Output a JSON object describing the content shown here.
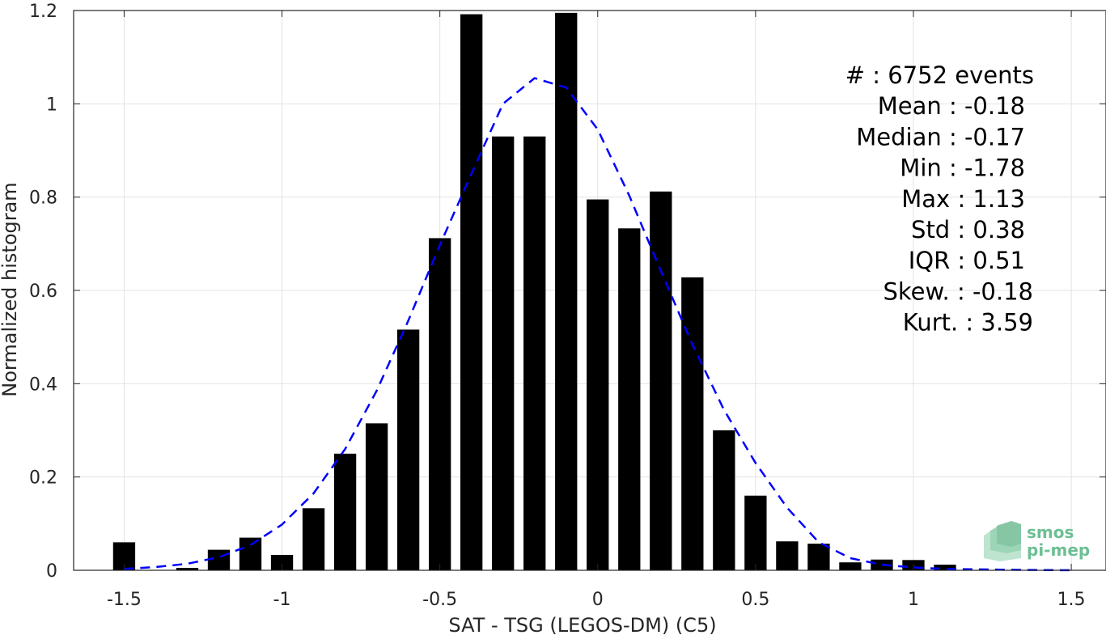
{
  "chart_data": {
    "type": "bar",
    "xlabel": "SAT - TSG (LEGOS-DM) (C5)",
    "ylabel": "Normalized histogram",
    "xlim": [
      -1.5,
      1.5
    ],
    "ylim": [
      0,
      1.2
    ],
    "grid": true,
    "xticks": [
      -1.5,
      -1,
      -0.5,
      0,
      0.5,
      1,
      1.5
    ],
    "xtick_labels": [
      "-1.5",
      "-1",
      "-0.5",
      "0",
      "0.5",
      "1",
      "1.5"
    ],
    "yticks": [
      0,
      0.2,
      0.4,
      0.6,
      0.8,
      1,
      1.2
    ],
    "ytick_labels": [
      "0",
      "0.2",
      "0.4",
      "0.6",
      "0.8",
      "1",
      "1.2"
    ],
    "bar_color": "#000000",
    "bar_width": 0.07,
    "bins": [
      {
        "x": -1.5,
        "y": 0.06
      },
      {
        "x": -1.3,
        "y": 0.005
      },
      {
        "x": -1.2,
        "y": 0.044
      },
      {
        "x": -1.1,
        "y": 0.07
      },
      {
        "x": -1.0,
        "y": 0.033
      },
      {
        "x": -0.9,
        "y": 0.133
      },
      {
        "x": -0.8,
        "y": 0.25
      },
      {
        "x": -0.7,
        "y": 0.315
      },
      {
        "x": -0.6,
        "y": 0.516
      },
      {
        "x": -0.5,
        "y": 0.712
      },
      {
        "x": -0.4,
        "y": 1.192
      },
      {
        "x": -0.3,
        "y": 0.93
      },
      {
        "x": -0.2,
        "y": 0.93
      },
      {
        "x": -0.1,
        "y": 1.195
      },
      {
        "x": 0.0,
        "y": 0.795
      },
      {
        "x": 0.1,
        "y": 0.733
      },
      {
        "x": 0.2,
        "y": 0.812
      },
      {
        "x": 0.3,
        "y": 0.628
      },
      {
        "x": 0.4,
        "y": 0.3
      },
      {
        "x": 0.5,
        "y": 0.16
      },
      {
        "x": 0.6,
        "y": 0.062
      },
      {
        "x": 0.7,
        "y": 0.057
      },
      {
        "x": 0.8,
        "y": 0.017
      },
      {
        "x": 0.9,
        "y": 0.023
      },
      {
        "x": 1.0,
        "y": 0.022
      },
      {
        "x": 1.1,
        "y": 0.012
      }
    ],
    "fit_curve": {
      "color": "#0000ff",
      "style": "dashed",
      "points": [
        [
          -1.5,
          0.003
        ],
        [
          -1.4,
          0.007
        ],
        [
          -1.3,
          0.014
        ],
        [
          -1.2,
          0.028
        ],
        [
          -1.1,
          0.054
        ],
        [
          -1.0,
          0.098
        ],
        [
          -0.9,
          0.165
        ],
        [
          -0.8,
          0.26
        ],
        [
          -0.7,
          0.385
        ],
        [
          -0.6,
          0.535
        ],
        [
          -0.5,
          0.697
        ],
        [
          -0.4,
          0.85
        ],
        [
          -0.3,
          1.0
        ],
        [
          -0.2,
          1.055
        ],
        [
          -0.1,
          1.035
        ],
        [
          0.0,
          0.945
        ],
        [
          0.1,
          0.803
        ],
        [
          0.2,
          0.642
        ],
        [
          0.3,
          0.484
        ],
        [
          0.4,
          0.344
        ],
        [
          0.5,
          0.23
        ],
        [
          0.6,
          0.134
        ],
        [
          0.7,
          0.06
        ],
        [
          0.8,
          0.026
        ],
        [
          0.9,
          0.012
        ],
        [
          1.0,
          0.006
        ],
        [
          1.1,
          0.003
        ],
        [
          1.2,
          0.002
        ],
        [
          1.3,
          0.001
        ],
        [
          1.4,
          0.0005
        ],
        [
          1.5,
          0.0002
        ]
      ]
    },
    "annotations": [
      "#  : 6752 events",
      "Mean : -0.18",
      "Median : -0.17",
      "Min : -1.78",
      "Max : 1.13",
      "Std : 0.38",
      "IQR : 0.51",
      "Skew. : -0.18",
      "Kurt. : 3.59"
    ]
  },
  "logo": {
    "line1": "smos",
    "line2": "pi-mep",
    "color": "#6cbf94"
  }
}
